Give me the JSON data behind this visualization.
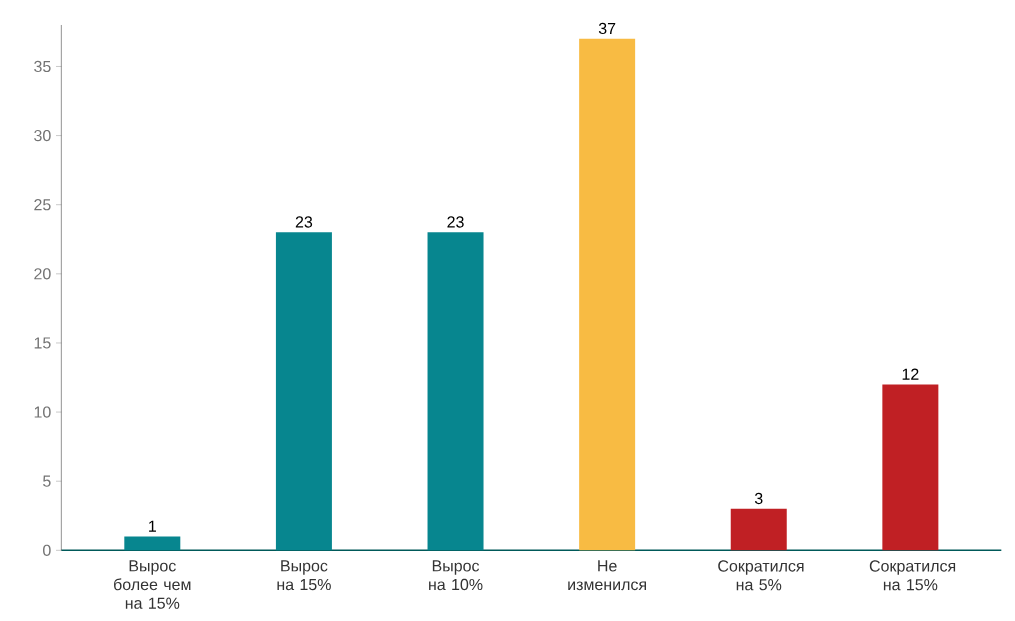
{
  "chart_data": {
    "type": "bar",
    "categories": [
      "Вырос более чем на 15%",
      "Вырос на 15%",
      "Вырос на 10%",
      "Не изменился",
      "Сократился на 5%",
      "Сократился на 15%"
    ],
    "values": [
      1,
      23,
      23,
      37,
      3,
      12
    ],
    "colors": [
      "#07868f",
      "#07868f",
      "#07868f",
      "#f8bb43",
      "#c02024",
      "#c02024"
    ],
    "ylim": [
      0,
      38
    ],
    "yticks": [
      0,
      5,
      10,
      15,
      20,
      25,
      30,
      35
    ],
    "grid": false,
    "data_labels": true
  }
}
